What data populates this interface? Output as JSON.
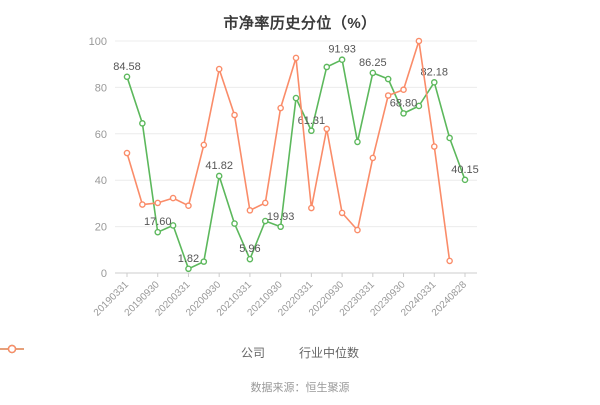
{
  "title": "市净率历史分位（%）",
  "footer": "数据来源：恒生聚源",
  "legend": [
    {
      "label": "公司",
      "color": "#5cb85c"
    },
    {
      "label": "行业中位数",
      "color": "#fa8c69"
    }
  ],
  "colors": {
    "company_line": "#5cb85c",
    "industry_line": "#fa8c69",
    "grid_line": "#ececec",
    "axis_line": "#cccccc",
    "tick_text": "#999999",
    "data_label_text": "#555555"
  },
  "chart_data": {
    "type": "line",
    "title": "市净率历史分位（%）",
    "xlabel": "",
    "ylabel": "",
    "ylim": [
      0,
      100
    ],
    "y_ticks": [
      0,
      20,
      40,
      60,
      80,
      100
    ],
    "grid": true,
    "legend_position": "bottom",
    "categories": [
      "20190331",
      "20190630",
      "20190930",
      "20191231",
      "20200331",
      "20200630",
      "20200930",
      "20201231",
      "20210331",
      "20210630",
      "20210930",
      "20211231",
      "20220331",
      "20220630",
      "20220930",
      "20221231",
      "20230331",
      "20230630",
      "20230930",
      "20231231",
      "20240331",
      "20240630",
      "20240828"
    ],
    "x_tick_label_indices": [
      0,
      2,
      4,
      6,
      8,
      10,
      12,
      14,
      16,
      18,
      20,
      22
    ],
    "series": [
      {
        "name": "公司",
        "color": "#5cb85c",
        "values": [
          84.58,
          64.5,
          17.6,
          20.5,
          1.82,
          4.9,
          41.82,
          21.3,
          5.96,
          22.4,
          19.93,
          75.4,
          61.31,
          88.8,
          91.93,
          56.5,
          86.25,
          83.6,
          68.8,
          72.0,
          82.18,
          58.2,
          40.15
        ],
        "point_labels": {
          "0": "84.58",
          "2": "17.60",
          "4": "1.82",
          "6": "41.82",
          "8": "5.96",
          "10": "19.93",
          "12": "61.31",
          "14": "91.93",
          "16": "86.25",
          "18": "68.80",
          "20": "82.18",
          "22": "40.15"
        }
      },
      {
        "name": "行业中位数",
        "color": "#fa8c69",
        "values": [
          51.7,
          29.5,
          30.2,
          32.3,
          29.0,
          55.2,
          87.9,
          68.1,
          27.0,
          30.2,
          71.1,
          92.7,
          28.0,
          62.1,
          25.9,
          18.5,
          49.6,
          76.5,
          79.0,
          100.0,
          54.5,
          5.2,
          null
        ],
        "point_labels": {}
      }
    ]
  }
}
